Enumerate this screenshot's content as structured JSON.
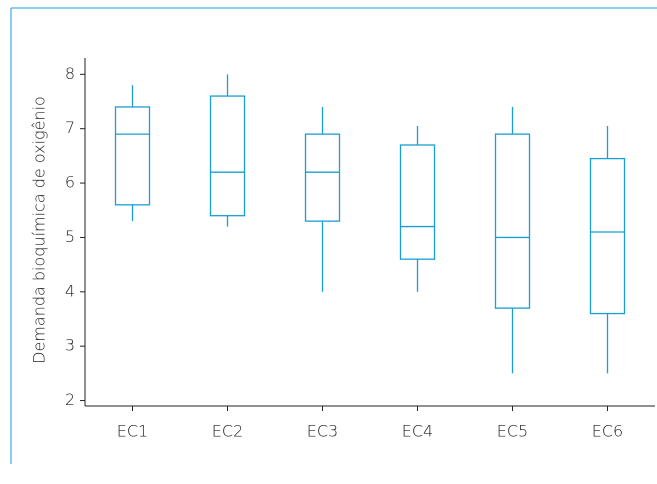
{
  "chart_data": {
    "type": "box",
    "y_label": "Demanda bioquímica de oxigênio",
    "categories": [
      "EC1",
      "EC2",
      "EC3",
      "EC4",
      "EC5",
      "EC6"
    ],
    "whisker_low": [
      5.3,
      5.2,
      4.0,
      4.0,
      2.5,
      2.5
    ],
    "q1": [
      5.6,
      5.4,
      5.3,
      4.6,
      3.7,
      3.6
    ],
    "median": [
      6.9,
      6.2,
      6.2,
      5.2,
      5.0,
      5.1
    ],
    "q3": [
      7.4,
      7.6,
      6.9,
      6.7,
      6.9,
      6.45
    ],
    "whisker_high": [
      7.8,
      8.0,
      7.4,
      7.05,
      7.4,
      7.05
    ],
    "color": "#1a9fd4",
    "ylim": [
      1.9,
      8.3
    ],
    "yticks": [
      2,
      3,
      4,
      5,
      6,
      7,
      8
    ]
  }
}
